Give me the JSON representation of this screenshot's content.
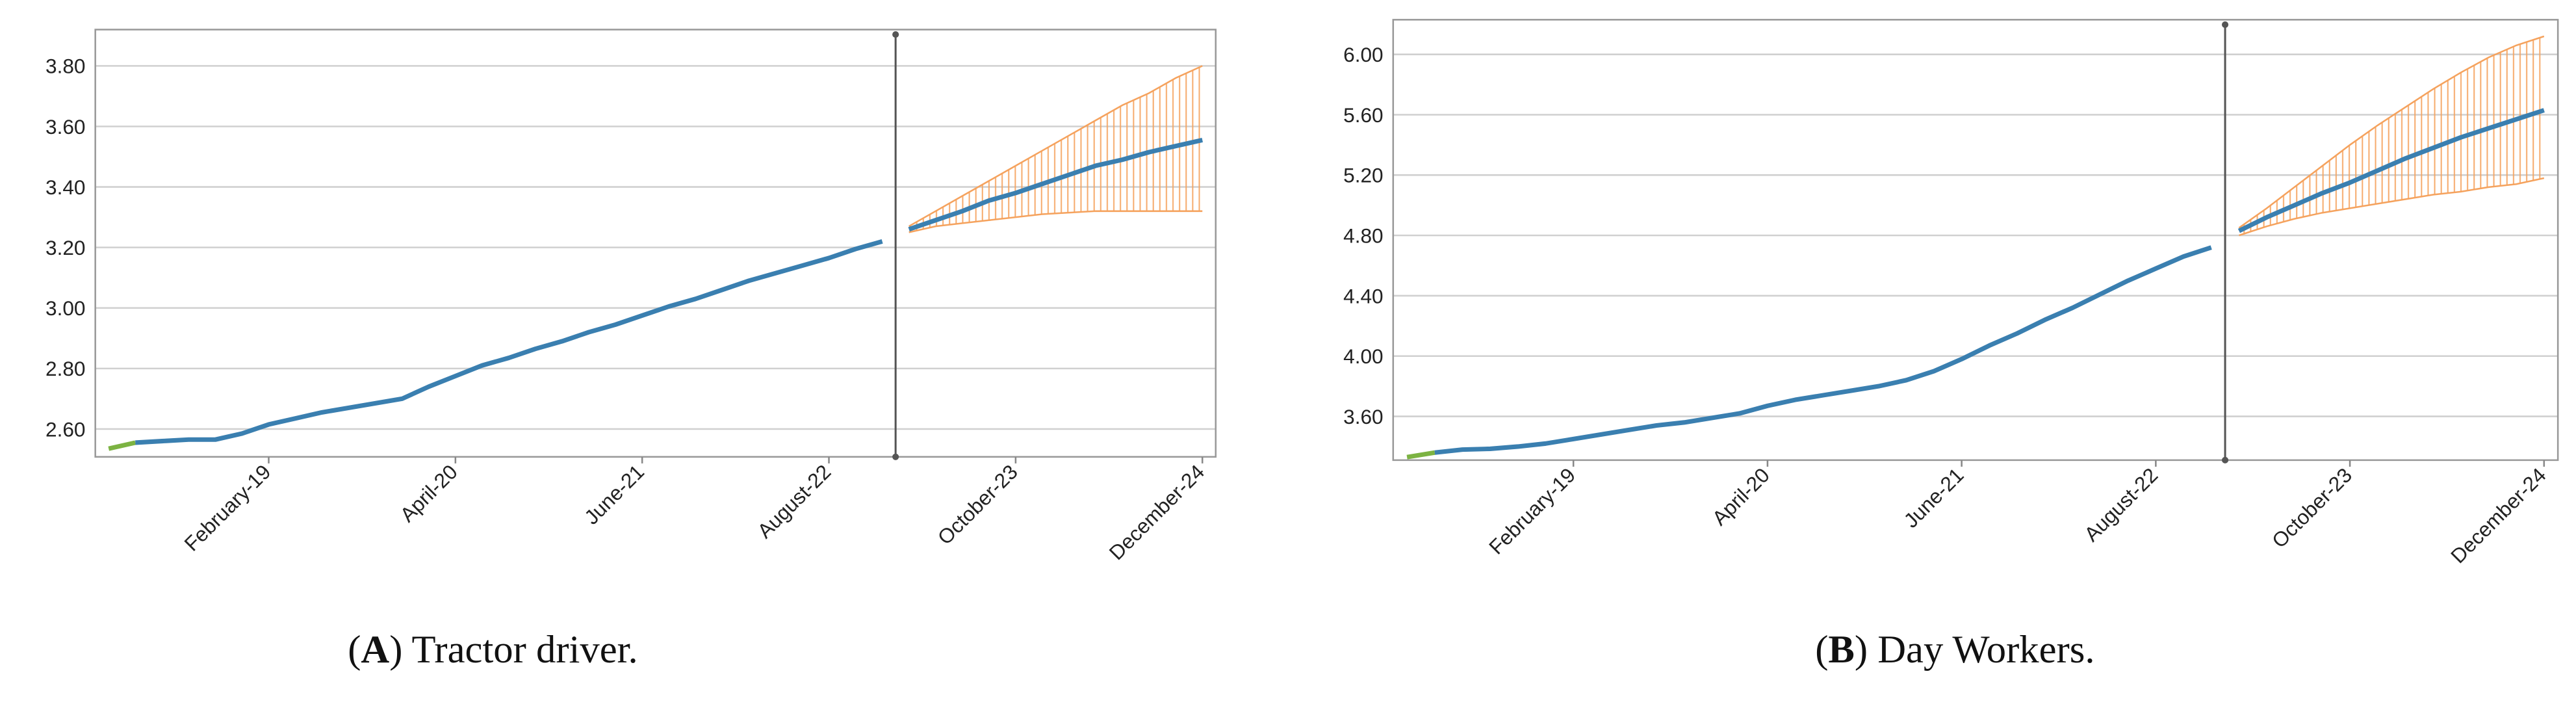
{
  "chart_data": [
    {
      "type": "line",
      "caption": [
        "(",
        "A",
        ") Tractor driver."
      ],
      "x": [
        "2018-02",
        "2018-04",
        "2018-06",
        "2018-08",
        "2018-10",
        "2018-12",
        "2019-02",
        "2019-04",
        "2019-06",
        "2019-08",
        "2019-10",
        "2019-12",
        "2020-02",
        "2020-04",
        "2020-06",
        "2020-08",
        "2020-10",
        "2020-12",
        "2021-02",
        "2021-04",
        "2021-06",
        "2021-08",
        "2021-10",
        "2021-12",
        "2022-02",
        "2022-04",
        "2022-06",
        "2022-08",
        "2022-10",
        "2022-12"
      ],
      "series": [
        {
          "color": "#7cb342",
          "values": [
            2.535,
            2.555,
            null,
            null,
            null,
            null,
            null,
            null,
            null,
            null,
            null,
            null,
            null,
            null,
            null,
            null,
            null,
            null,
            null,
            null,
            null,
            null,
            null,
            null,
            null,
            null,
            null,
            null,
            null,
            null
          ]
        },
        {
          "color": "#3a7fb0",
          "values": [
            null,
            2.555,
            2.56,
            2.565,
            2.565,
            2.585,
            2.615,
            2.635,
            2.655,
            2.67,
            2.685,
            2.7,
            2.74,
            2.775,
            2.81,
            2.835,
            2.865,
            2.89,
            2.92,
            2.945,
            2.975,
            3.005,
            3.03,
            3.06,
            3.09,
            3.115,
            3.14,
            3.165,
            3.195,
            3.22
          ]
        }
      ],
      "forecast": {
        "color": "#3a7fb0",
        "band_color": "#f5a25d",
        "x": [
          "2023-02",
          "2023-04",
          "2023-06",
          "2023-08",
          "2023-10",
          "2023-12",
          "2024-02",
          "2024-04",
          "2024-06",
          "2024-08",
          "2024-10",
          "2024-12"
        ],
        "values": [
          3.26,
          3.29,
          3.32,
          3.355,
          3.38,
          3.41,
          3.44,
          3.47,
          3.49,
          3.515,
          3.535,
          3.555
        ],
        "upper": [
          3.27,
          3.32,
          3.37,
          3.42,
          3.47,
          3.52,
          3.57,
          3.62,
          3.67,
          3.71,
          3.76,
          3.8
        ],
        "lower": [
          3.25,
          3.27,
          3.28,
          3.29,
          3.3,
          3.31,
          3.315,
          3.32,
          3.32,
          3.32,
          3.32,
          3.32
        ]
      },
      "divider_x": "2023-01",
      "xlim": [
        "2018-01",
        "2025-01"
      ],
      "xticks": [
        {
          "value": "2019-02",
          "label": "February-19"
        },
        {
          "value": "2020-04",
          "label": "April-20"
        },
        {
          "value": "2021-06",
          "label": "June-21"
        },
        {
          "value": "2022-08",
          "label": "August-22"
        },
        {
          "value": "2023-10",
          "label": "October-23"
        },
        {
          "value": "2024-12",
          "label": "December-24"
        }
      ],
      "ylim": [
        2.508,
        3.92
      ],
      "yticks": [
        {
          "value": 2.6,
          "label": "2.60"
        },
        {
          "value": 2.8,
          "label": "2.80"
        },
        {
          "value": 3,
          "label": "3.00"
        },
        {
          "value": 3.2,
          "label": "3.20"
        },
        {
          "value": 3.4,
          "label": "3.40"
        },
        {
          "value": 3.6,
          "label": "3.60"
        },
        {
          "value": 3.8,
          "label": "3.80"
        }
      ],
      "grid": true
    },
    {
      "type": "line",
      "caption": [
        "(",
        "B",
        ") Day Workers."
      ],
      "x": [
        "2018-02",
        "2018-04",
        "2018-06",
        "2018-08",
        "2018-10",
        "2018-12",
        "2019-02",
        "2019-04",
        "2019-06",
        "2019-08",
        "2019-10",
        "2019-12",
        "2020-02",
        "2020-04",
        "2020-06",
        "2020-08",
        "2020-10",
        "2020-12",
        "2021-02",
        "2021-04",
        "2021-06",
        "2021-08",
        "2021-10",
        "2021-12",
        "2022-02",
        "2022-04",
        "2022-06",
        "2022-08",
        "2022-10",
        "2022-12"
      ],
      "series": [
        {
          "color": "#7cb342",
          "values": [
            3.33,
            3.36,
            null,
            null,
            null,
            null,
            null,
            null,
            null,
            null,
            null,
            null,
            null,
            null,
            null,
            null,
            null,
            null,
            null,
            null,
            null,
            null,
            null,
            null,
            null,
            null,
            null,
            null,
            null,
            null
          ]
        },
        {
          "color": "#3a7fb0",
          "values": [
            null,
            3.36,
            3.38,
            3.385,
            3.4,
            3.42,
            3.45,
            3.48,
            3.51,
            3.54,
            3.56,
            3.59,
            3.62,
            3.67,
            3.71,
            3.74,
            3.77,
            3.8,
            3.84,
            3.9,
            3.98,
            4.07,
            4.15,
            4.24,
            4.32,
            4.41,
            4.5,
            4.58,
            4.66,
            4.72
          ]
        }
      ],
      "forecast": {
        "color": "#3a7fb0",
        "band_color": "#f5a25d",
        "x": [
          "2023-02",
          "2023-04",
          "2023-06",
          "2023-08",
          "2023-10",
          "2023-12",
          "2024-02",
          "2024-04",
          "2024-06",
          "2024-08",
          "2024-10",
          "2024-12"
        ],
        "values": [
          4.83,
          4.92,
          5,
          5.08,
          5.15,
          5.23,
          5.31,
          5.38,
          5.45,
          5.51,
          5.57,
          5.63
        ],
        "upper": [
          4.85,
          4.98,
          5.12,
          5.26,
          5.4,
          5.53,
          5.65,
          5.77,
          5.88,
          5.98,
          6.06,
          6.12
        ],
        "lower": [
          4.8,
          4.86,
          4.91,
          4.95,
          4.98,
          5.01,
          5.04,
          5.07,
          5.09,
          5.12,
          5.14,
          5.18
        ]
      },
      "divider_x": "2023-01",
      "xlim": [
        "2018-01",
        "2025-01"
      ],
      "xticks": [
        {
          "value": "2019-02",
          "label": "February-19"
        },
        {
          "value": "2020-04",
          "label": "April-20"
        },
        {
          "value": "2021-06",
          "label": "June-21"
        },
        {
          "value": "2022-08",
          "label": "August-22"
        },
        {
          "value": "2023-10",
          "label": "October-23"
        },
        {
          "value": "2024-12",
          "label": "December-24"
        }
      ],
      "ylim": [
        3.31,
        6.23
      ],
      "yticks": [
        {
          "value": 3.6,
          "label": "3.60"
        },
        {
          "value": 4,
          "label": "4.00"
        },
        {
          "value": 4.4,
          "label": "4.40"
        },
        {
          "value": 4.8,
          "label": "4.80"
        },
        {
          "value": 5.2,
          "label": "5.20"
        },
        {
          "value": 5.6,
          "label": "5.60"
        },
        {
          "value": 6,
          "label": "6.00"
        }
      ],
      "grid": true
    }
  ]
}
